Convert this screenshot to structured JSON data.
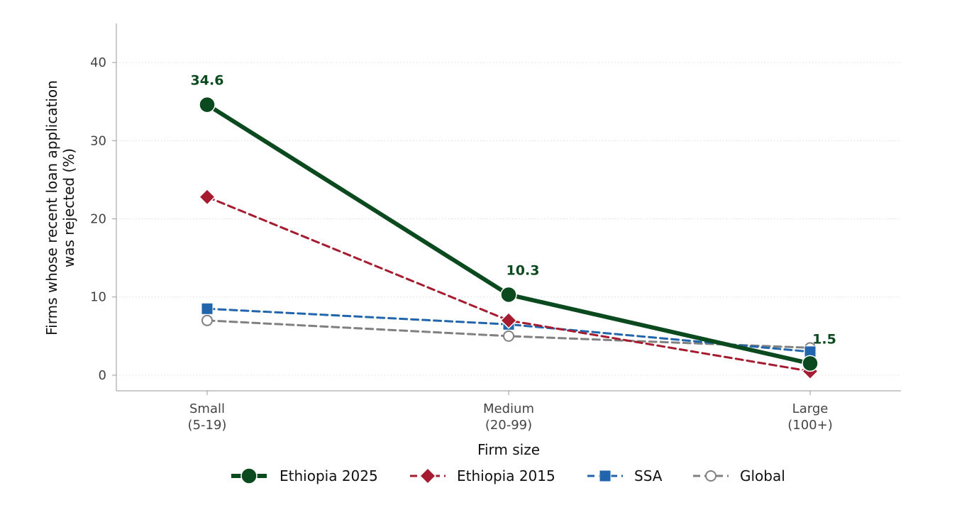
{
  "chart_data": {
    "type": "line",
    "title": "",
    "xlabel": "Firm size",
    "ylabel_lines": [
      "Firms whose recent loan application",
      "was rejected (%)"
    ],
    "categories": [
      {
        "line1": "Small",
        "line2": "(5-19)"
      },
      {
        "line1": "Medium",
        "line2": "(20-99)"
      },
      {
        "line1": "Large",
        "line2": "(100+)"
      }
    ],
    "ylim": [
      -2,
      45
    ],
    "yticks": [
      0,
      10,
      20,
      30,
      40
    ],
    "grid": "horizontal-dotted",
    "legend_position": "bottom",
    "series": [
      {
        "name": "Ethiopia 2025",
        "values": [
          34.6,
          10.3,
          1.5
        ],
        "color": "#0b4a1f",
        "style": "solid",
        "marker": "circle-filled"
      },
      {
        "name": "Ethiopia 2015",
        "values": [
          22.8,
          7.0,
          0.5
        ],
        "color": "#a51c30",
        "style": "dashed",
        "marker": "diamond"
      },
      {
        "name": "SSA",
        "values": [
          8.5,
          6.5,
          3.0
        ],
        "color": "#2166ac",
        "style": "dashed",
        "marker": "square"
      },
      {
        "name": "Global",
        "values": [
          7.0,
          5.0,
          3.5
        ],
        "color": "#808080",
        "style": "dashed",
        "marker": "circle-open"
      }
    ],
    "data_labels": [
      {
        "series": "Ethiopia 2025",
        "index": 0,
        "text": "34.6"
      },
      {
        "series": "Ethiopia 2025",
        "index": 1,
        "text": "10.3"
      },
      {
        "series": "Ethiopia 2025",
        "index": 2,
        "text": "1.5"
      }
    ]
  }
}
